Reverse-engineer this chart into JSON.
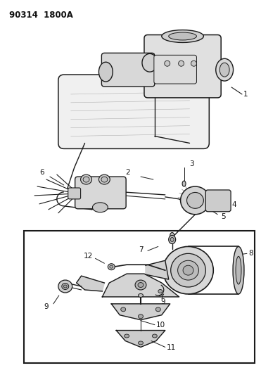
{
  "title_code": "90314  1800A",
  "bg_color": "#ffffff",
  "line_color": "#1a1a1a",
  "text_color": "#111111",
  "fig_width": 3.98,
  "fig_height": 5.33,
  "dpi": 100,
  "title_fontsize": 8.5,
  "title_fontweight": "bold"
}
